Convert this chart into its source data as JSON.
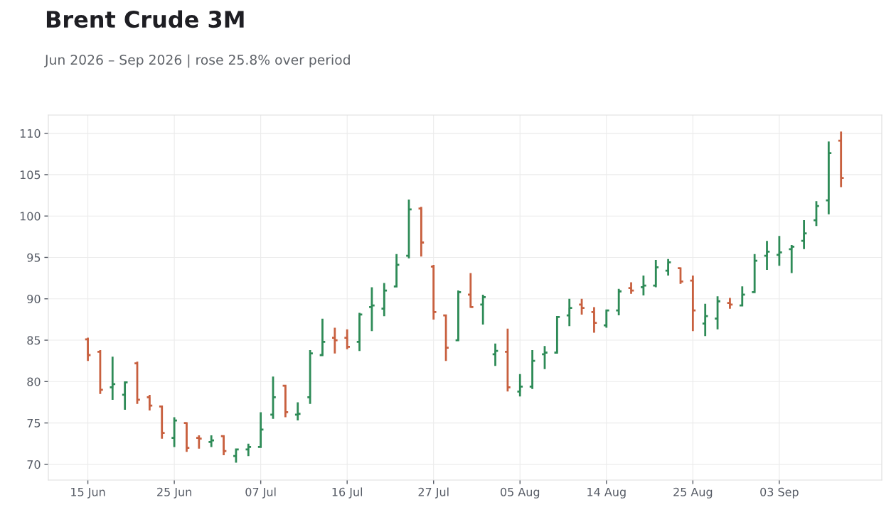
{
  "chart_data": {
    "type": "candlestick",
    "title": "Brent Crude 3M",
    "subtitle": "Jun 2026 – Sep 2026 | rose 25.8% over period",
    "categories": [
      "15 Jun",
      null,
      null,
      null,
      null,
      null,
      null,
      "25 Jun",
      null,
      null,
      null,
      null,
      null,
      null,
      "07 Jul",
      null,
      null,
      null,
      null,
      null,
      null,
      "16 Jul",
      null,
      null,
      null,
      null,
      null,
      null,
      "27 Jul",
      null,
      null,
      null,
      null,
      null,
      null,
      "05 Aug",
      null,
      null,
      null,
      null,
      null,
      null,
      "14 Aug",
      null,
      null,
      null,
      null,
      null,
      null,
      "25 Aug",
      null,
      null,
      null,
      null,
      null,
      null,
      "03 Sep",
      null,
      null,
      null,
      null,
      null
    ],
    "ohlc": [
      [
        85.1,
        85.3,
        82.5,
        83.2
      ],
      [
        83.6,
        83.8,
        78.5,
        79.0
      ],
      [
        79.3,
        83.0,
        77.8,
        79.7
      ],
      [
        78.4,
        80.0,
        76.6,
        79.9
      ],
      [
        82.2,
        82.4,
        77.3,
        77.8
      ],
      [
        78.1,
        78.4,
        76.5,
        77.1
      ],
      [
        77.0,
        77.0,
        73.1,
        73.8
      ],
      [
        73.2,
        75.7,
        72.1,
        75.3
      ],
      [
        75.0,
        75.1,
        71.5,
        72.0
      ],
      [
        73.2,
        73.5,
        71.9,
        73.1
      ],
      [
        72.7,
        73.5,
        72.1,
        72.9
      ],
      [
        73.4,
        73.4,
        71.1,
        71.6
      ],
      [
        71.0,
        71.9,
        70.2,
        71.8
      ],
      [
        71.8,
        72.5,
        71.0,
        72.1
      ],
      [
        72.1,
        76.3,
        72.1,
        74.2
      ],
      [
        76.0,
        80.6,
        75.5,
        78.1
      ],
      [
        79.5,
        79.5,
        75.7,
        76.3
      ],
      [
        76.0,
        77.5,
        75.3,
        76.1
      ],
      [
        78.1,
        83.8,
        77.3,
        83.4
      ],
      [
        83.2,
        87.6,
        83.1,
        84.8
      ],
      [
        85.3,
        86.5,
        83.4,
        85.0
      ],
      [
        85.3,
        86.3,
        83.9,
        84.2
      ],
      [
        84.8,
        88.3,
        83.7,
        88.1
      ],
      [
        89.0,
        91.4,
        86.1,
        89.2
      ],
      [
        88.8,
        91.9,
        87.9,
        91.0
      ],
      [
        91.5,
        95.4,
        91.4,
        94.1
      ],
      [
        95.2,
        102.0,
        94.9,
        100.8
      ],
      [
        100.9,
        101.1,
        95.1,
        96.8
      ],
      [
        93.9,
        94.1,
        87.5,
        88.4
      ],
      [
        88.0,
        88.0,
        82.5,
        84.1
      ],
      [
        85.0,
        91.0,
        85.0,
        90.8
      ],
      [
        90.5,
        93.1,
        88.9,
        89.0
      ],
      [
        89.3,
        90.5,
        86.9,
        90.2
      ],
      [
        83.3,
        84.6,
        81.9,
        83.7
      ],
      [
        83.6,
        86.4,
        78.8,
        79.3
      ],
      [
        78.8,
        80.9,
        78.2,
        79.4
      ],
      [
        79.4,
        83.8,
        79.1,
        82.5
      ],
      [
        83.3,
        84.3,
        81.5,
        83.5
      ],
      [
        83.5,
        87.9,
        83.4,
        87.8
      ],
      [
        88.0,
        90.0,
        86.7,
        88.9
      ],
      [
        89.3,
        90.0,
        88.1,
        88.9
      ],
      [
        88.4,
        89.0,
        85.9,
        87.1
      ],
      [
        86.8,
        88.7,
        86.5,
        88.6
      ],
      [
        88.6,
        91.2,
        88.0,
        90.9
      ],
      [
        91.3,
        92.0,
        90.6,
        91.0
      ],
      [
        91.4,
        92.8,
        90.4,
        91.6
      ],
      [
        91.6,
        94.7,
        91.4,
        93.8
      ],
      [
        93.4,
        94.8,
        92.8,
        94.4
      ],
      [
        93.7,
        93.8,
        91.8,
        92.1
      ],
      [
        92.2,
        92.8,
        86.1,
        88.6
      ],
      [
        87.0,
        89.4,
        85.5,
        87.9
      ],
      [
        87.6,
        90.3,
        86.3,
        89.7
      ],
      [
        89.5,
        90.1,
        88.8,
        89.3
      ],
      [
        89.2,
        91.5,
        89.1,
        90.5
      ],
      [
        90.8,
        95.4,
        90.8,
        94.6
      ],
      [
        95.2,
        97.0,
        93.5,
        95.7
      ],
      [
        95.3,
        97.6,
        94.0,
        95.6
      ],
      [
        96.0,
        96.5,
        93.1,
        96.3
      ],
      [
        97.0,
        99.5,
        96.0,
        97.9
      ],
      [
        99.5,
        101.8,
        98.8,
        101.2
      ],
      [
        101.9,
        109.0,
        100.2,
        107.6
      ],
      [
        109.1,
        110.2,
        103.5,
        104.6
      ]
    ],
    "colors": [
      "#c8603f",
      "#c8603f",
      "#2e8b57",
      "#2e8b57",
      "#c8603f",
      "#c8603f",
      "#c8603f",
      "#2e8b57",
      "#c8603f",
      "#c8603f",
      "#2e8b57",
      "#c8603f",
      "#2e8b57",
      "#2e8b57",
      "#2e8b57",
      "#2e8b57",
      "#c8603f",
      "#2e8b57",
      "#2e8b57",
      "#2e8b57",
      "#c8603f",
      "#c8603f",
      "#2e8b57",
      "#2e8b57",
      "#2e8b57",
      "#2e8b57",
      "#2e8b57",
      "#c8603f",
      "#c8603f",
      "#c8603f",
      "#2e8b57",
      "#c8603f",
      "#2e8b57",
      "#2e8b57",
      "#c8603f",
      "#2e8b57",
      "#2e8b57",
      "#2e8b57",
      "#2e8b57",
      "#2e8b57",
      "#c8603f",
      "#c8603f",
      "#2e8b57",
      "#2e8b57",
      "#c8603f",
      "#2e8b57",
      "#2e8b57",
      "#2e8b57",
      "#c8603f",
      "#c8603f",
      "#2e8b57",
      "#2e8b57",
      "#c8603f",
      "#2e8b57",
      "#2e8b57",
      "#2e8b57",
      "#2e8b57",
      "#2e8b57",
      "#2e8b57",
      "#2e8b57",
      "#2e8b57",
      "#c8603f"
    ],
    "ylim": [
      68.1,
      112.2
    ],
    "yticks": [
      70,
      75,
      80,
      85,
      90,
      95,
      100,
      105,
      110
    ],
    "grid": true
  }
}
